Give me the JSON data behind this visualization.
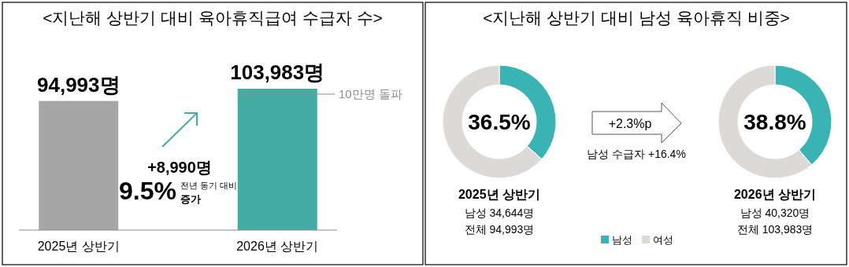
{
  "chart_data": [
    {
      "type": "bar",
      "title": "<지난해 상반기 대비 육아휴직급여 수급자 수>",
      "categories": [
        "2025년 상반기",
        "2026년 상반기"
      ],
      "values": [
        94993,
        103983
      ],
      "colors": [
        "#a6a6a6",
        "#45aba5"
      ],
      "value_labels": [
        "94,993명",
        "103,983명"
      ],
      "ref_lines": [
        {
          "axis": "y",
          "value": 100000,
          "label": "10만명 돌파",
          "color": "#8c8c8c"
        }
      ],
      "annotations": [
        "+8,990명",
        "9.5%",
        "전년 동기 대비",
        "증가"
      ]
    },
    {
      "type": "donut",
      "title": "<지난해 상반기 대비 남성 육아휴직 비중>",
      "subtitle": "2025년 상반기",
      "categories": [
        "남성",
        "여성"
      ],
      "values": [
        36.5,
        63.5
      ],
      "colors": [
        "#3ab3b5",
        "#dcdad6"
      ],
      "legend": "bottom",
      "annotations": [
        "36.5%",
        "남성 34,644명",
        "전체 94,993명",
        "+2.3%p",
        "남성 수급자 +16.4%"
      ]
    },
    {
      "type": "donut",
      "subtitle": "2026년 상반기",
      "categories": [
        null,
        null
      ],
      "values": [
        38.8,
        61.2
      ],
      "colors": [
        "#3ab3b5",
        "#dcdad6"
      ],
      "annotations": [
        "38.8%",
        "남성 40,320명",
        "전체 103,983명"
      ]
    }
  ]
}
